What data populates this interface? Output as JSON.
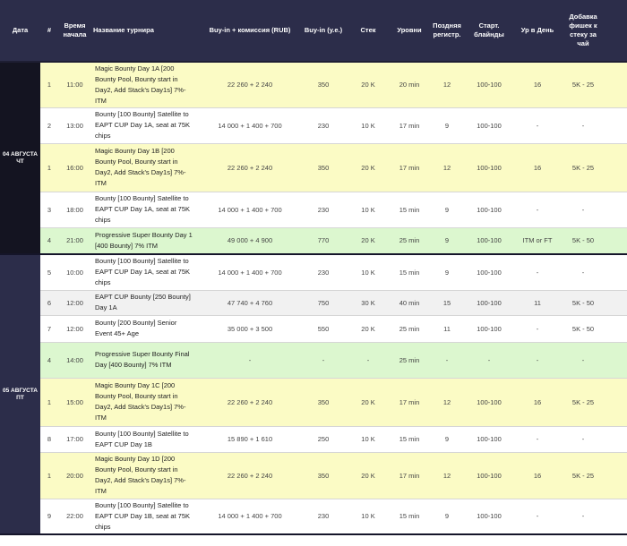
{
  "headers": {
    "date": "Дата",
    "num": "#",
    "start_time": "Время начала",
    "tournament_name": "Название турнира",
    "buyin_rub": "Buy-in + комиссия (RUB)",
    "buyin_ue": "Buy-in (у.е.)",
    "stack": "Стек",
    "levels": "Уровни",
    "late_reg": "Поздняя регистр.",
    "start_blinds": "Старт. блайнды",
    "levels_per_day": "Ур в День",
    "addon": "Добавка фишек к стеку за чай"
  },
  "days": [
    {
      "date_label": "04 АВГУСТА ЧТ",
      "rows": [
        {
          "bg": "yellow",
          "num": "1",
          "time": "11:00",
          "name": "Magic Bounty Day 1A [200 Bounty Pool, Bounty start in Day2, Add Stack's Day1s] 7%-ITM",
          "buyin_rub": "22 260 + 2 240",
          "buyin_ue": "350",
          "stack": "20 K",
          "levels": "20 min",
          "late_reg": "12",
          "blinds": "100-100",
          "levels_day": "16",
          "addon": "5K - 25"
        },
        {
          "bg": "white",
          "num": "2",
          "time": "13:00",
          "name": "Bounty [100 Bounty] Satellite to EAPT CUP Day 1A, seat at 75K chips",
          "buyin_rub": "14 000 + 1 400 + 700",
          "buyin_ue": "230",
          "stack": "10 K",
          "levels": "17 min",
          "late_reg": "9",
          "blinds": "100-100",
          "levels_day": "-",
          "addon": "-"
        },
        {
          "bg": "yellow",
          "num": "1",
          "time": "16:00",
          "name": "Magic Bounty Day 1B [200 Bounty Pool, Bounty start in Day2, Add Stack's Day1s] 7%-ITM",
          "buyin_rub": "22 260 + 2 240",
          "buyin_ue": "350",
          "stack": "20 K",
          "levels": "17 min",
          "late_reg": "12",
          "blinds": "100-100",
          "levels_day": "16",
          "addon": "5K - 25"
        },
        {
          "bg": "white",
          "num": "3",
          "time": "18:00",
          "name": "Bounty [100 Bounty] Satellite to EAPT CUP Day 1A, seat at 75K chips",
          "buyin_rub": "14 000 + 1 400 + 700",
          "buyin_ue": "230",
          "stack": "10 K",
          "levels": "15 min",
          "late_reg": "9",
          "blinds": "100-100",
          "levels_day": "-",
          "addon": "-"
        },
        {
          "bg": "green",
          "num": "4",
          "time": "21:00",
          "name": "Progressive Super Bounty Day 1 [400 Bounty] 7% ITM",
          "buyin_rub": "49 000 + 4 900",
          "buyin_ue": "770",
          "stack": "20 K",
          "levels": "25 min",
          "late_reg": "9",
          "blinds": "100-100",
          "levels_day": "ITM or FT",
          "addon": "5K - 50"
        }
      ]
    },
    {
      "date_label": "05 АВГУСТА ПТ",
      "rows": [
        {
          "bg": "white",
          "num": "5",
          "time": "10:00",
          "name": "Bounty [100 Bounty] Satellite to EAPT CUP Day 1A, seat at 75K chips",
          "buyin_rub": "14 000 + 1 400 + 700",
          "buyin_ue": "230",
          "stack": "10 K",
          "levels": "15 min",
          "late_reg": "9",
          "blinds": "100-100",
          "levels_day": "-",
          "addon": "-"
        },
        {
          "bg": "grey",
          "num": "6",
          "time": "12:00",
          "name": "EAPT CUP Bounty [250 Bounty] Day 1A",
          "buyin_rub": "47 740 + 4 760",
          "buyin_ue": "750",
          "stack": "30 K",
          "levels": "40 min",
          "late_reg": "15",
          "blinds": "100-100",
          "levels_day": "11",
          "addon": "5K - 50"
        },
        {
          "bg": "white",
          "num": "7",
          "time": "12:00",
          "name": "Bounty [200 Bounty] Senior Event 45+ Age",
          "buyin_rub": "35 000 + 3 500",
          "buyin_ue": "550",
          "stack": "20 K",
          "levels": "25 min",
          "late_reg": "11",
          "blinds": "100-100",
          "levels_day": "-",
          "addon": "5K - 50"
        },
        {
          "bg": "green",
          "num": "4",
          "time": "14:00",
          "name": "Progressive Super Bounty Final Day [400 Bounty] 7% ITM",
          "buyin_rub": "-",
          "buyin_ue": "-",
          "stack": "-",
          "levels": "25 min",
          "late_reg": "-",
          "blinds": "-",
          "levels_day": "-",
          "addon": "-"
        },
        {
          "bg": "yellow",
          "num": "1",
          "time": "15:00",
          "name": "Magic Bounty Day 1C [200 Bounty Pool, Bounty start in Day2, Add Stack's Day1s] 7%-ITM",
          "buyin_rub": "22 260 + 2 240",
          "buyin_ue": "350",
          "stack": "20 K",
          "levels": "17 min",
          "late_reg": "12",
          "blinds": "100-100",
          "levels_day": "16",
          "addon": "5K - 25"
        },
        {
          "bg": "white",
          "num": "8",
          "time": "17:00",
          "name": "Bounty [100 Bounty] Satellite to EAPT CUP Day 1B",
          "buyin_rub": "15 890 + 1 610",
          "buyin_ue": "250",
          "stack": "10 K",
          "levels": "15 min",
          "late_reg": "9",
          "blinds": "100-100",
          "levels_day": "-",
          "addon": "-"
        },
        {
          "bg": "yellow",
          "num": "1",
          "time": "20:00",
          "name": "Magic Bounty Day 1D [200 Bounty Pool, Bounty start in Day2, Add Stack's Day1s] 7%-ITM",
          "buyin_rub": "22 260 + 2 240",
          "buyin_ue": "350",
          "stack": "20 K",
          "levels": "17 min",
          "late_reg": "12",
          "blinds": "100-100",
          "levels_day": "16",
          "addon": "5K - 25"
        },
        {
          "bg": "white",
          "num": "9",
          "time": "22:00",
          "name": "Bounty [100 Bounty] Satellite to EAPT CUP Day 1B, seat at 75K chips",
          "buyin_rub": "14 000 + 1 400 + 700",
          "buyin_ue": "230",
          "stack": "10 K",
          "levels": "15 min",
          "late_reg": "9",
          "blinds": "100-100",
          "levels_day": "-",
          "addon": "-"
        }
      ]
    }
  ],
  "colors": {
    "header_bg": "#2c2d4a",
    "row_yellow": "#fbfbc5",
    "row_green": "#dcf7cf",
    "row_grey": "#f1f1f1"
  }
}
